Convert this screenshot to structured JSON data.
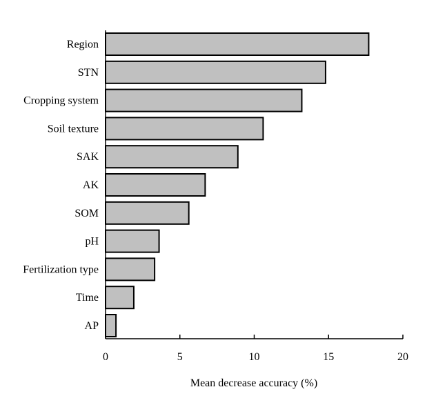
{
  "chart_data": {
    "type": "bar",
    "orientation": "horizontal",
    "categories": [
      "Region",
      "STN",
      "Cropping system",
      "Soil texture",
      "SAK",
      "AK",
      "SOM",
      "pH",
      "Fertilization type",
      "Time",
      "AP"
    ],
    "values": [
      17.7,
      14.8,
      13.2,
      10.6,
      8.9,
      6.7,
      5.6,
      3.6,
      3.3,
      1.9,
      0.7
    ],
    "xlabel": "Mean decrease accuracy (%)",
    "ylabel": "",
    "xlim": [
      0,
      20
    ],
    "xticks": [
      "0",
      "5",
      "10",
      "15",
      "20"
    ],
    "bar_color": "#c0c0c0",
    "grid": false,
    "legend": "none"
  }
}
